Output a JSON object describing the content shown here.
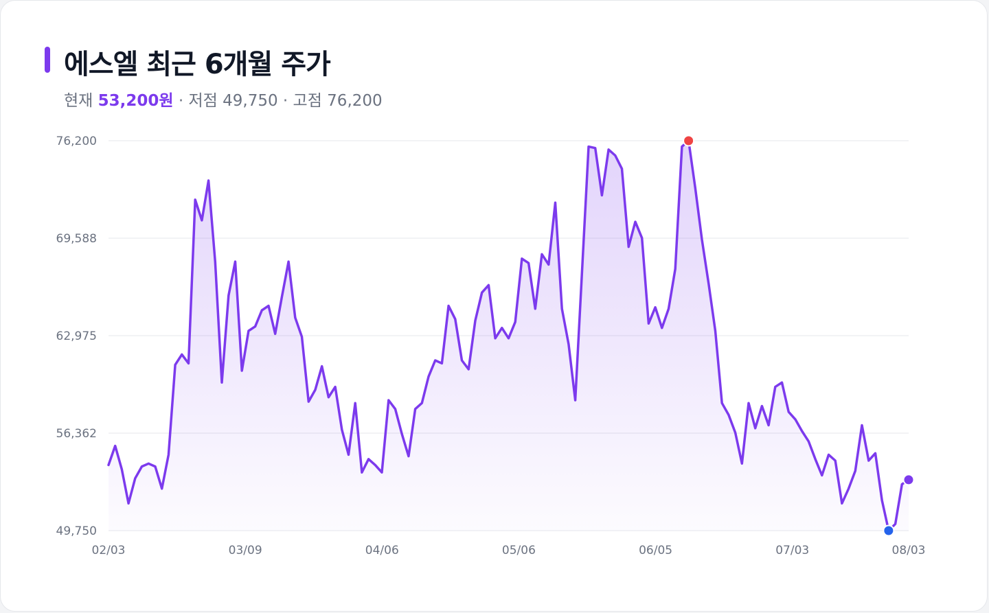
{
  "header": {
    "title": "에스엘 최근 6개월 주가",
    "current_label": "현재",
    "current_value": "53,200원",
    "low_label": "· 저점 49,750",
    "high_label": "· 고점 76,200"
  },
  "colors": {
    "accent": "#7c3aed",
    "line": "#7c3aed",
    "high_marker": "#ef4444",
    "low_marker": "#2563eb",
    "current_marker": "#7c3aed",
    "grid": "#e5e7eb"
  },
  "chart_data": {
    "type": "area",
    "title": "에스엘 최근 6개월 주가",
    "xlabel": "",
    "ylabel": "",
    "ylim": [
      49750,
      76200
    ],
    "yticks": [
      {
        "value": 76200,
        "label": "76,200"
      },
      {
        "value": 69588,
        "label": "69,588"
      },
      {
        "value": 62975,
        "label": "62,975"
      },
      {
        "value": 56362,
        "label": "56,362"
      },
      {
        "value": 49750,
        "label": "49,750"
      }
    ],
    "x_range": [
      0,
      117
    ],
    "xticks": [
      {
        "index": 0,
        "label": "02/03"
      },
      {
        "index": 20,
        "label": "03/09"
      },
      {
        "index": 40,
        "label": "04/06"
      },
      {
        "index": 60,
        "label": "05/06"
      },
      {
        "index": 80,
        "label": "06/05"
      },
      {
        "index": 100,
        "label": "07/03"
      },
      {
        "index": 117,
        "label": "08/03"
      }
    ],
    "grid": true,
    "series": [
      {
        "values": [
          54200,
          55500,
          53900,
          51600,
          53300,
          54100,
          54300,
          54100,
          52600,
          54900,
          61000,
          61700,
          61100,
          72200,
          70800,
          73500,
          68000,
          59800,
          65700,
          68000,
          60600,
          63300,
          63600,
          64700,
          65000,
          63100,
          65600,
          68000,
          64200,
          62900,
          58500,
          59300,
          60900,
          58800,
          59500,
          56600,
          54900,
          58400,
          53700,
          54600,
          54200,
          53700,
          58600,
          58000,
          56300,
          54800,
          58000,
          58400,
          60200,
          61300,
          61100,
          65000,
          64100,
          61300,
          60700,
          64000,
          65900,
          66400,
          62800,
          63500,
          62800,
          63900,
          68200,
          67900,
          64800,
          68500,
          67800,
          72000,
          64800,
          62400,
          58600,
          67200,
          75800,
          75700,
          72500,
          75600,
          75200,
          74300,
          69000,
          70700,
          69600,
          63800,
          64900,
          63500,
          64800,
          67500,
          75800,
          76200,
          73000,
          69500,
          66500,
          63300,
          58400,
          57600,
          56400,
          54300,
          58400,
          56700,
          58200,
          56900,
          59500,
          59800,
          57800,
          57300,
          56500,
          55800,
          54600,
          53500,
          54900,
          54500,
          51600,
          52600,
          53800,
          56900,
          54500,
          55000,
          51800,
          49750,
          50200,
          52900,
          53200
        ]
      }
    ],
    "markers": [
      {
        "type": "high",
        "index": 87,
        "value": 76200
      },
      {
        "type": "low",
        "index": 117,
        "value": 49750
      },
      {
        "type": "current",
        "index": 120,
        "value": 53200
      }
    ]
  }
}
